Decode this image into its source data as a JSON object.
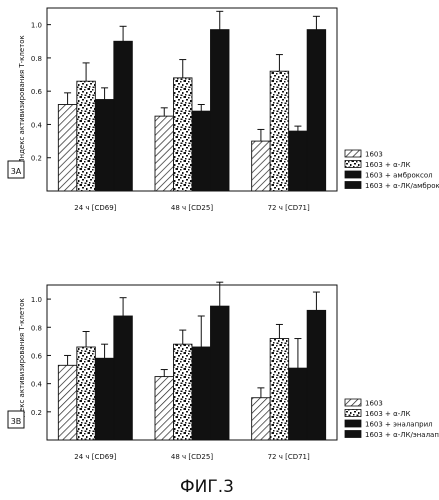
{
  "figure_caption": "ФИГ.3",
  "chart_data": [
    {
      "type": "bar",
      "panel_label": "3A",
      "ylabel": "Индекс активизирования Т-клеток",
      "ylim": [
        0,
        1.1
      ],
      "yticks": [
        0.2,
        0.4,
        0.6,
        0.8,
        1.0
      ],
      "ytick_labels": [
        "0.2",
        "0.4",
        "0.6",
        "0.8",
        "1.0"
      ],
      "grid": false,
      "legend_placement": "bottom-right",
      "categories": [
        "24 ч [CD69]",
        "48 ч [CD25]",
        "72 ч [CD71]"
      ],
      "series": [
        {
          "name": "1603",
          "pattern": "hatch",
          "values": [
            0.52,
            0.45,
            0.3
          ],
          "errors": [
            0.07,
            0.05,
            0.07
          ]
        },
        {
          "name": "1603 + α-ЛК",
          "pattern": "speckle",
          "values": [
            0.66,
            0.68,
            0.72
          ],
          "errors": [
            0.11,
            0.11,
            0.1
          ]
        },
        {
          "name": "1603 + амброксол",
          "pattern": "solid",
          "values": [
            0.55,
            0.48,
            0.36
          ],
          "errors": [
            0.07,
            0.04,
            0.03
          ]
        },
        {
          "name": "1603 + α-ЛК/амброксол",
          "pattern": "solid",
          "values": [
            0.9,
            0.97,
            0.97
          ],
          "errors": [
            0.09,
            0.11,
            0.08
          ]
        }
      ]
    },
    {
      "type": "bar",
      "panel_label": "3B",
      "ylabel": "Индекс активизирования Т-клеток",
      "ylim": [
        0,
        1.1
      ],
      "yticks": [
        0.2,
        0.4,
        0.6,
        0.8,
        1.0
      ],
      "ytick_labels": [
        "0.2",
        "0.4",
        "0.6",
        "0.8",
        "1.0"
      ],
      "grid": false,
      "legend_placement": "bottom-right",
      "categories": [
        "24 ч [CD69]",
        "48 ч [CD25]",
        "72 ч [CD71]"
      ],
      "series": [
        {
          "name": "1603",
          "pattern": "hatch",
          "values": [
            0.53,
            0.45,
            0.3
          ],
          "errors": [
            0.07,
            0.05,
            0.07
          ]
        },
        {
          "name": "1603 + α-ЛК",
          "pattern": "speckle",
          "values": [
            0.66,
            0.68,
            0.72
          ],
          "errors": [
            0.11,
            0.1,
            0.1
          ]
        },
        {
          "name": "1603 + эналаприл",
          "pattern": "solid",
          "values": [
            0.58,
            0.66,
            0.51
          ],
          "errors": [
            0.1,
            0.22,
            0.21
          ]
        },
        {
          "name": "1603 + α-ЛК/эналаприл",
          "pattern": "solid",
          "values": [
            0.88,
            0.95,
            0.92
          ],
          "errors": [
            0.13,
            0.17,
            0.13
          ]
        }
      ]
    }
  ]
}
